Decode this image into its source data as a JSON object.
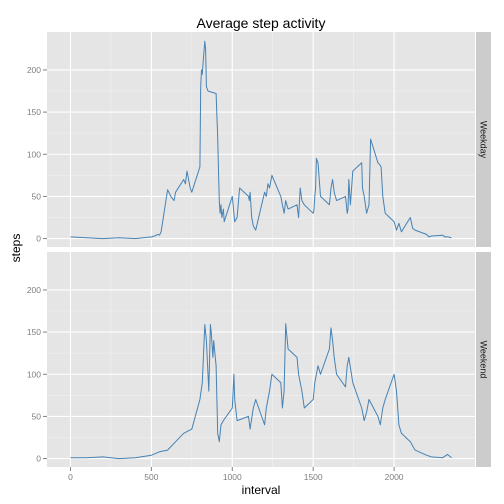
{
  "chart_data": {
    "type": "line",
    "title": "Average step activity",
    "xlabel": "interval",
    "ylabel": "steps",
    "xlim": [
      -145,
      2500
    ],
    "ylim": [
      -10,
      245
    ],
    "x_ticks": [
      0,
      500,
      1000,
      1500,
      2000
    ],
    "y_ticks": [
      0,
      50,
      100,
      150,
      200
    ],
    "grid": true,
    "colors": {
      "line": "#4682B4",
      "panel": "#E5E5E5",
      "strip": "#CCCCCC"
    },
    "facets": [
      {
        "label": "Weekday",
        "x": [
          0,
          100,
          200,
          300,
          400,
          500,
          520,
          540,
          550,
          560,
          600,
          620,
          640,
          650,
          700,
          710,
          720,
          740,
          750,
          800,
          805,
          810,
          815,
          820,
          830,
          835,
          840,
          850,
          900,
          905,
          910,
          915,
          920,
          925,
          930,
          935,
          945,
          950,
          1000,
          1005,
          1010,
          1015,
          1030,
          1045,
          1100,
          1105,
          1110,
          1120,
          1130,
          1145,
          1200,
          1210,
          1220,
          1230,
          1245,
          1300,
          1310,
          1320,
          1330,
          1345,
          1400,
          1410,
          1420,
          1430,
          1445,
          1500,
          1505,
          1510,
          1515,
          1520,
          1530,
          1545,
          1600,
          1610,
          1620,
          1630,
          1645,
          1700,
          1705,
          1710,
          1715,
          1720,
          1730,
          1745,
          1800,
          1805,
          1815,
          1830,
          1845,
          1855,
          1900,
          1910,
          1920,
          1930,
          1945,
          2000,
          2015,
          2030,
          2045,
          2100,
          2115,
          2130,
          2200,
          2215,
          2230,
          2300,
          2315,
          2330,
          2355
        ],
        "values": [
          2,
          1,
          0,
          1,
          0,
          2,
          3,
          5,
          4,
          8,
          58,
          50,
          45,
          55,
          70,
          65,
          80,
          60,
          55,
          85,
          180,
          200,
          195,
          210,
          234,
          225,
          180,
          175,
          172,
          145,
          120,
          80,
          45,
          30,
          40,
          25,
          35,
          20,
          50,
          40,
          30,
          20,
          25,
          60,
          50,
          45,
          55,
          25,
          15,
          10,
          55,
          50,
          65,
          60,
          75,
          50,
          40,
          30,
          45,
          35,
          40,
          25,
          60,
          45,
          40,
          30,
          35,
          50,
          60,
          95,
          90,
          50,
          40,
          60,
          70,
          55,
          45,
          50,
          40,
          30,
          35,
          70,
          40,
          80,
          90,
          60,
          50,
          30,
          40,
          118,
          90,
          88,
          85,
          50,
          30,
          20,
          10,
          18,
          8,
          25,
          12,
          10,
          5,
          2,
          3,
          4,
          2,
          2,
          1
        ]
      },
      {
        "label": "Weekend",
        "x": [
          0,
          100,
          200,
          300,
          400,
          500,
          550,
          600,
          650,
          700,
          750,
          800,
          815,
          830,
          840,
          850,
          855,
          865,
          870,
          880,
          885,
          890,
          900,
          910,
          920,
          930,
          945,
          1000,
          1005,
          1010,
          1015,
          1030,
          1100,
          1110,
          1130,
          1145,
          1200,
          1210,
          1230,
          1245,
          1300,
          1310,
          1320,
          1330,
          1345,
          1400,
          1410,
          1430,
          1445,
          1500,
          1510,
          1530,
          1545,
          1600,
          1610,
          1620,
          1630,
          1645,
          1700,
          1710,
          1720,
          1745,
          1800,
          1815,
          1830,
          1845,
          1900,
          1915,
          1930,
          1945,
          2000,
          2015,
          2030,
          2045,
          2100,
          2130,
          2200,
          2230,
          2300,
          2330,
          2355
        ],
        "values": [
          1,
          1,
          2,
          0,
          1,
          4,
          8,
          10,
          20,
          30,
          35,
          70,
          90,
          159,
          140,
          100,
          80,
          159,
          150,
          120,
          140,
          130,
          110,
          30,
          20,
          40,
          45,
          60,
          80,
          100,
          70,
          45,
          50,
          35,
          60,
          70,
          40,
          60,
          80,
          100,
          90,
          60,
          80,
          160,
          130,
          120,
          100,
          80,
          60,
          70,
          90,
          110,
          100,
          130,
          155,
          140,
          120,
          100,
          85,
          110,
          120,
          90,
          60,
          45,
          55,
          70,
          50,
          40,
          60,
          70,
          100,
          80,
          40,
          30,
          20,
          10,
          4,
          2,
          1,
          5,
          1
        ]
      }
    ]
  }
}
